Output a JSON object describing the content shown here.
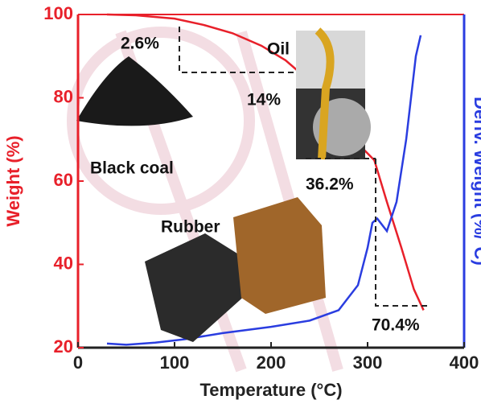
{
  "chart_data": {
    "type": "line",
    "xlabel": "Temperature (°C)",
    "ylabel": "Weight (%)",
    "y2label": "Deriv. Weight (%/°C)",
    "xlim": [
      0,
      400
    ],
    "xticks": [
      0,
      100,
      200,
      300,
      400
    ],
    "ylim": [
      20,
      100
    ],
    "yticks": [
      20,
      40,
      60,
      80,
      100
    ],
    "y2lim": [
      20,
      100
    ],
    "series": [
      {
        "name": "Weight",
        "color": "#e8202a",
        "x": [
          30,
          60,
          100,
          130,
          160,
          190,
          215,
          240,
          270,
          290,
          307,
          320,
          335,
          348,
          358
        ],
        "values": [
          100,
          99.8,
          99,
          97.5,
          95.5,
          92.5,
          89,
          84,
          75,
          69,
          65,
          55,
          44,
          34,
          29
        ]
      },
      {
        "name": "Deriv. Weight",
        "color": "#2a3de0",
        "axis": "y2",
        "x": [
          30,
          50,
          80,
          110,
          150,
          200,
          240,
          270,
          290,
          300,
          305,
          310,
          320,
          330,
          340,
          350,
          355
        ],
        "values": [
          21,
          20.7,
          21.2,
          22,
          23.5,
          25,
          26.5,
          29,
          35,
          44,
          50,
          51,
          48,
          55,
          70,
          90,
          95
        ]
      }
    ],
    "annotations": [
      "2.6%",
      "Oil",
      "14%",
      "Black coal",
      "36.2%",
      "Rubber",
      "70.4%"
    ]
  }
}
